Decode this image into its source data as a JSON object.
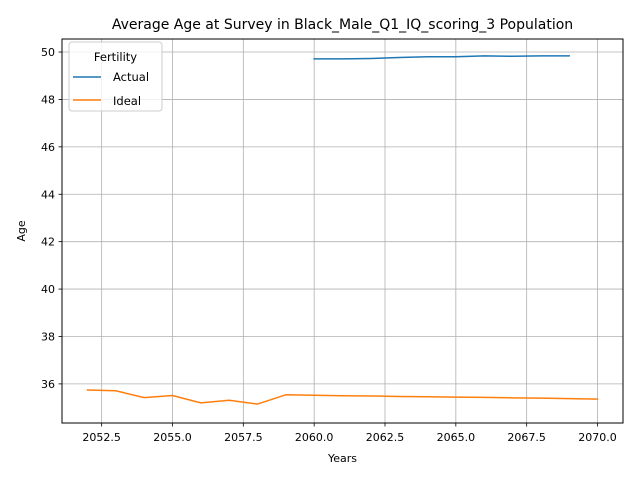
{
  "chart_data": {
    "type": "line",
    "title": "Average Age at Survey in Black_Male_Q1_IQ_scoring_3 Population",
    "xlabel": "Years",
    "ylabel": "Age",
    "xlim": [
      2051.1,
      2070.9
    ],
    "ylim": [
      34.35,
      50.55
    ],
    "xticks": [
      2052.5,
      2055.0,
      2057.5,
      2060.0,
      2062.5,
      2065.0,
      2067.5,
      2070.0
    ],
    "xtick_labels": [
      "2052.5",
      "2055.0",
      "2057.5",
      "2060.0",
      "2062.5",
      "2065.0",
      "2067.5",
      "2070.0"
    ],
    "yticks": [
      36,
      38,
      40,
      42,
      44,
      46,
      48,
      50
    ],
    "ytick_labels": [
      "36",
      "38",
      "40",
      "42",
      "44",
      "46",
      "48",
      "50"
    ],
    "grid": true,
    "legend": {
      "title": "Fertility",
      "placement": "top-left"
    },
    "series": [
      {
        "name": "Actual",
        "color": "#1f77b4",
        "x": [
          2060,
          2061,
          2062,
          2063,
          2064,
          2065,
          2066,
          2067,
          2068,
          2069
        ],
        "y": [
          49.71,
          49.71,
          49.73,
          49.77,
          49.8,
          49.8,
          49.84,
          49.82,
          49.84,
          49.84
        ]
      },
      {
        "name": "Ideal",
        "color": "#ff7f0e",
        "x": [
          2052,
          2053,
          2054,
          2055,
          2056,
          2057,
          2058,
          2059,
          2060,
          2061,
          2062,
          2063,
          2064,
          2065,
          2066,
          2067,
          2068,
          2069,
          2070
        ],
        "y": [
          35.74,
          35.71,
          35.42,
          35.51,
          35.2,
          35.31,
          35.15,
          35.54,
          35.52,
          35.5,
          35.49,
          35.47,
          35.46,
          35.44,
          35.43,
          35.41,
          35.4,
          35.38,
          35.36
        ]
      }
    ]
  }
}
